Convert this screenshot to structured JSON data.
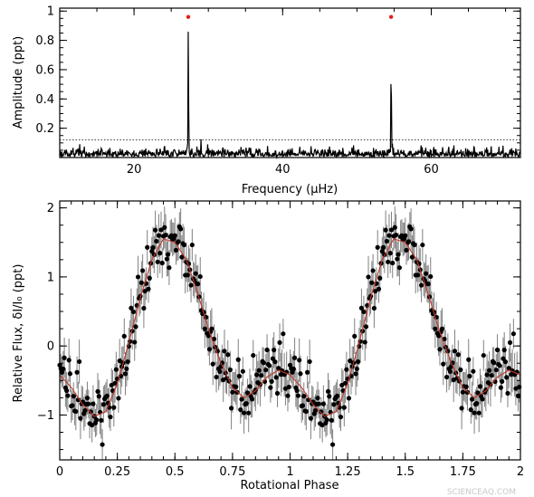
{
  "chart_data": [
    {
      "type": "line",
      "xlabel": "Frequency (μHz)",
      "ylabel": "Amplitude (ppt)",
      "xlim": [
        10,
        72
      ],
      "ylim": [
        0,
        1.02
      ],
      "xticks": [
        "20",
        "40",
        "60"
      ],
      "xtick_values": [
        20,
        40,
        60
      ],
      "yticks": [
        "0.2",
        "0.4",
        "0.6",
        "0.8",
        "1"
      ],
      "ytick_values": [
        0.2,
        0.4,
        0.6,
        0.8,
        1.0
      ],
      "yminor_step": 0.05,
      "xminor_step": 5,
      "noise_level": 0.12,
      "peaks": [
        {
          "x": 27.3,
          "y": 0.86
        },
        {
          "x": 54.6,
          "y": 0.63
        }
      ],
      "markers": [
        {
          "x": 27.3,
          "y": 0.96,
          "color": "#e0201c"
        },
        {
          "x": 54.6,
          "y": 0.96,
          "color": "#e0201c"
        }
      ],
      "line_color": "#000000",
      "noise_line_style": "dotted"
    },
    {
      "type": "scatter",
      "xlabel": "Rotational Phase",
      "ylabel": "Relative Flux, δI/I₀ (ppt)",
      "xlim": [
        0,
        2
      ],
      "ylim": [
        -1.65,
        2.1
      ],
      "xticks": [
        "0",
        "0.25",
        "0.5",
        "0.75",
        "1",
        "1.25",
        "1.5",
        "1.75",
        "2"
      ],
      "xtick_values": [
        0,
        0.25,
        0.5,
        0.75,
        1.0,
        1.25,
        1.5,
        1.75,
        2.0
      ],
      "yticks": [
        "−1",
        "0",
        "1",
        "2"
      ],
      "ytick_values": [
        -1,
        0,
        1,
        2
      ],
      "yminor_step": 0.25,
      "xminor_step": 0.05,
      "model_curve": {
        "color": "#c0392b",
        "phase": [
          0.0,
          0.05,
          0.1,
          0.15,
          0.2,
          0.25,
          0.3,
          0.35,
          0.4,
          0.45,
          0.5,
          0.55,
          0.6,
          0.65,
          0.7,
          0.75,
          0.8,
          0.85,
          0.9,
          0.95,
          1.0
        ],
        "flux": [
          -0.42,
          -0.6,
          -0.85,
          -1.02,
          -0.95,
          -0.55,
          0.05,
          0.7,
          1.25,
          1.55,
          1.5,
          1.25,
          0.75,
          0.2,
          -0.25,
          -0.6,
          -0.75,
          -0.65,
          -0.45,
          -0.35,
          -0.42
        ]
      },
      "points_color": "#000000",
      "errorbar_color": "#808080"
    }
  ],
  "watermark": "SCIENCEAQ.COM"
}
